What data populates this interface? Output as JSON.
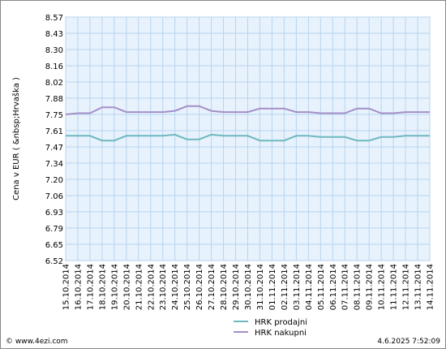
{
  "chart_data": {
    "type": "line",
    "ylabel": "Cena v EUR ( &nbsp;Hrvaška )",
    "ylim": [
      6.52,
      8.57
    ],
    "y_ticks": [
      "8.57",
      "8.43",
      "8.30",
      "8.16",
      "8.02",
      "7.88",
      "7.75",
      "7.61",
      "7.47",
      "7.34",
      "7.20",
      "7.06",
      "6.93",
      "6.79",
      "6.65",
      "6.52"
    ],
    "categories": [
      "15.10.2014",
      "16.10.2014",
      "17.10.2014",
      "18.10.2014",
      "19.10.2014",
      "20.10.2014",
      "21.10.2014",
      "22.10.2014",
      "23.10.2014",
      "24.10.2014",
      "25.10.2014",
      "26.10.2014",
      "27.10.2014",
      "28.10.2014",
      "29.10.2014",
      "30.10.2014",
      "31.10.2014",
      "01.11.2014",
      "02.11.2014",
      "03.11.2014",
      "04.11.2014",
      "05.11.2014",
      "06.11.2014",
      "07.11.2014",
      "08.11.2014",
      "09.11.2014",
      "10.11.2014",
      "11.11.2014",
      "12.11.2014",
      "13.11.2014",
      "14.11.2014"
    ],
    "series": [
      {
        "name": "HRK prodajni",
        "color": "#6fb8bf",
        "values": [
          7.57,
          7.57,
          7.57,
          7.53,
          7.53,
          7.57,
          7.57,
          7.57,
          7.57,
          7.58,
          7.54,
          7.54,
          7.58,
          7.57,
          7.57,
          7.57,
          7.53,
          7.53,
          7.53,
          7.57,
          7.57,
          7.56,
          7.56,
          7.56,
          7.53,
          7.53,
          7.56,
          7.56,
          7.57,
          7.57,
          7.57
        ]
      },
      {
        "name": "HRK nakupni",
        "color": "#a48fc6",
        "values": [
          7.75,
          7.76,
          7.76,
          7.81,
          7.81,
          7.77,
          7.77,
          7.77,
          7.77,
          7.78,
          7.82,
          7.82,
          7.78,
          7.77,
          7.77,
          7.77,
          7.8,
          7.8,
          7.8,
          7.77,
          7.77,
          7.76,
          7.76,
          7.76,
          7.8,
          7.8,
          7.76,
          7.76,
          7.77,
          7.77,
          7.77
        ]
      }
    ],
    "grid": true,
    "legend_position": "bottom"
  },
  "footer": {
    "left": "© www.4ezi.com",
    "right": "4.6.2025  7:52:09"
  }
}
